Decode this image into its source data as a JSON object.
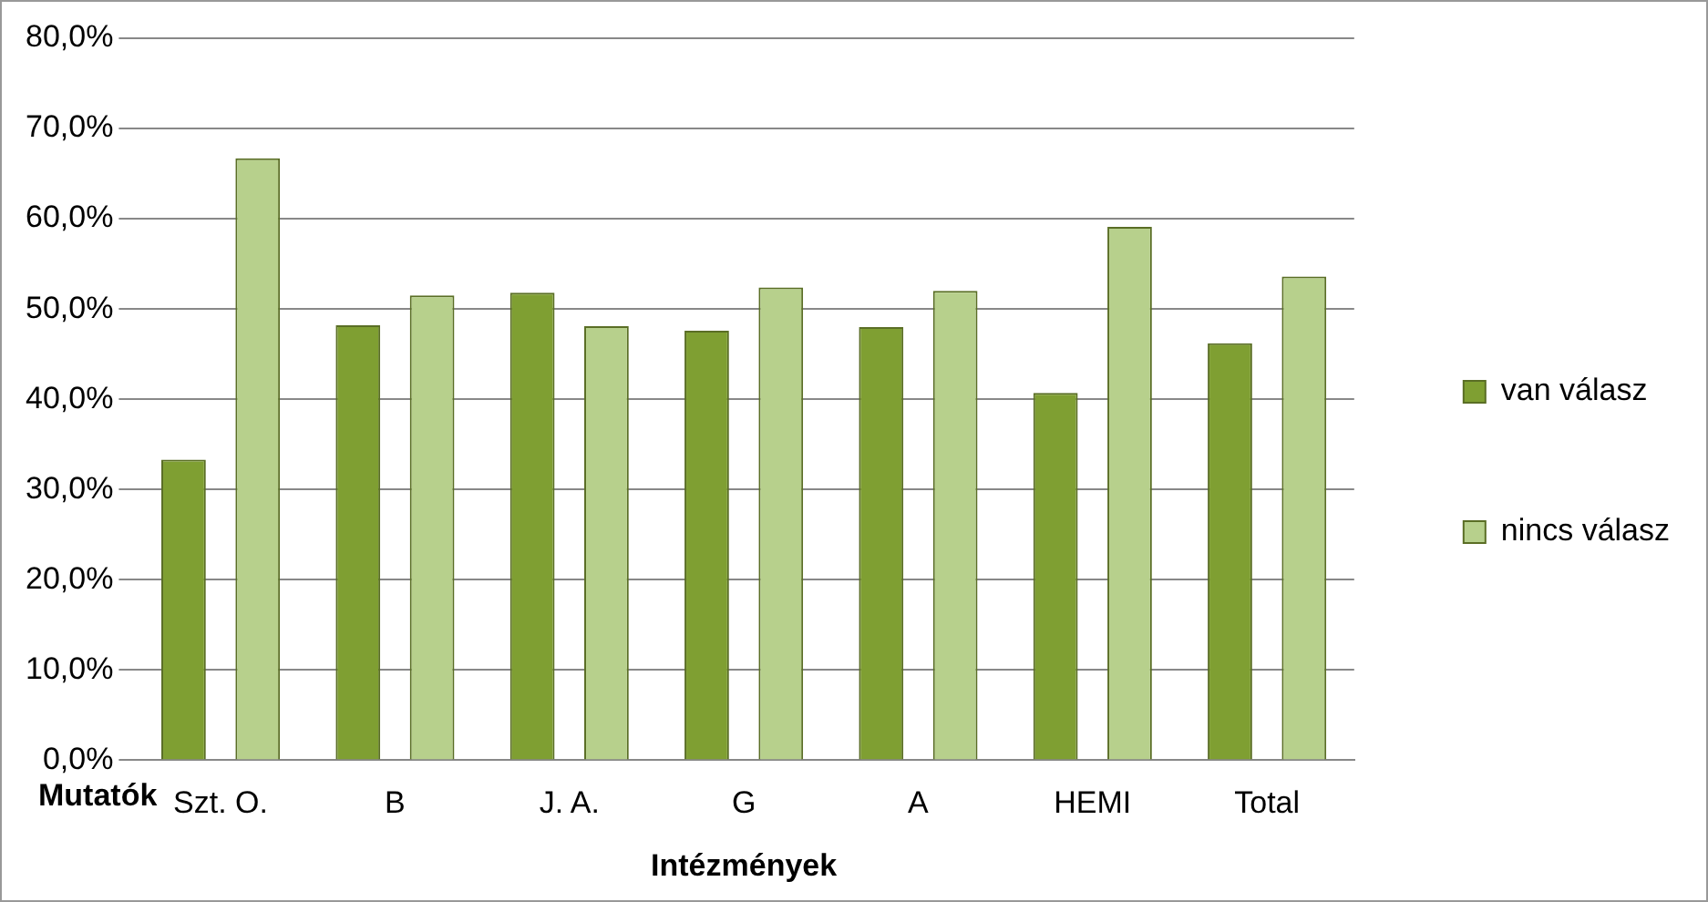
{
  "chart_data": {
    "type": "bar",
    "xlabel": "Intézmények",
    "categories": [
      "Szt. O.",
      "B",
      "J. A.",
      "G",
      "A",
      "HEMI",
      "Total"
    ],
    "series": [
      {
        "name": "van válasz",
        "color": "#7f9f32",
        "values": [
          33.3,
          48.2,
          51.8,
          47.6,
          48.0,
          40.7,
          46.2
        ]
      },
      {
        "name": "nincs válasz",
        "color": "#b7d08c",
        "values": [
          66.7,
          51.5,
          48.1,
          52.4,
          52.0,
          59.1,
          53.6
        ]
      }
    ],
    "ylim": [
      0,
      80
    ],
    "yticks": [
      {
        "value": 0,
        "label": "0,0%"
      },
      {
        "value": 10,
        "label": "10,0%"
      },
      {
        "value": 20,
        "label": "20,0%"
      },
      {
        "value": 30,
        "label": "30,0%"
      },
      {
        "value": 40,
        "label": "40,0%"
      },
      {
        "value": 50,
        "label": "50,0%"
      },
      {
        "value": 60,
        "label": "60,0%"
      },
      {
        "value": 70,
        "label": "70,0%"
      },
      {
        "value": 80,
        "label": "80,0%"
      }
    ],
    "grid": "y",
    "legend": "right",
    "annotations": [
      "Mutatók"
    ]
  }
}
